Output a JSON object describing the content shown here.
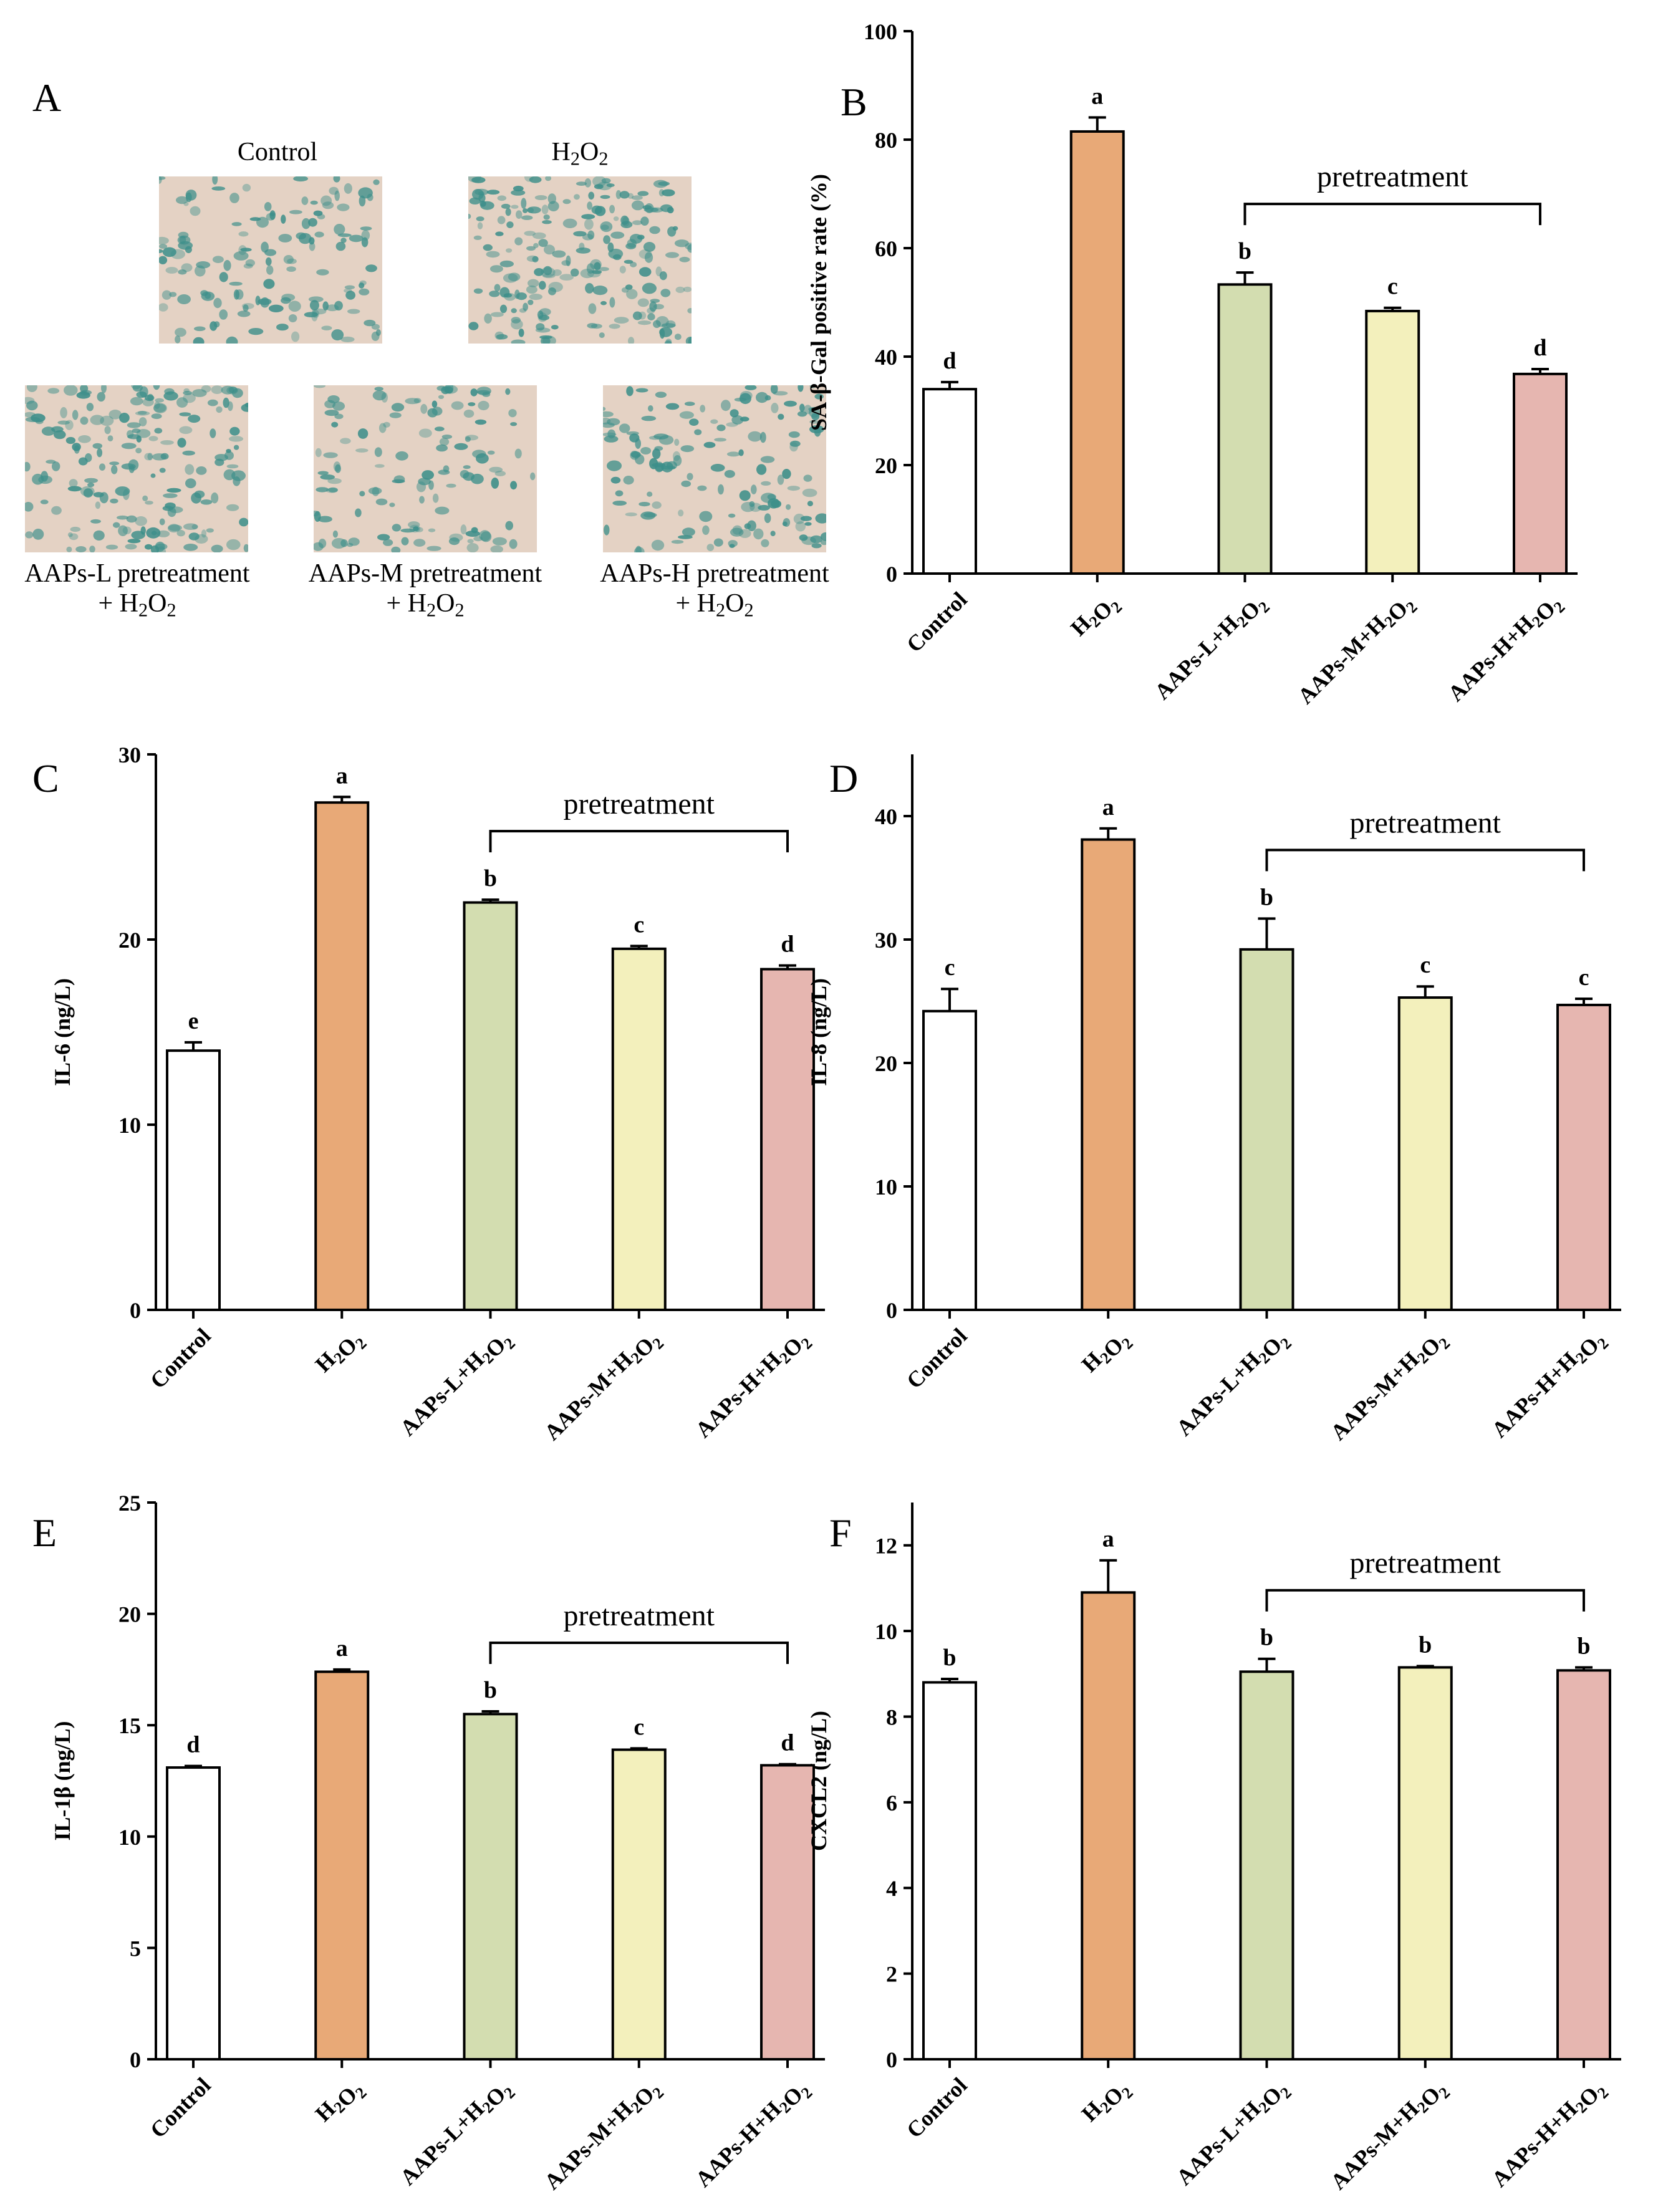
{
  "panel_a": {
    "letter": "A",
    "labels": {
      "control": "Control",
      "h2o2_base": "H",
      "h2o2_sub1": "2",
      "h2o2_mid": "O",
      "h2o2_sub2": "2",
      "l_line1": "AAPs-L pretreatment",
      "m_line1": "AAPs-M pretreatment",
      "h_line1": "AAPs-H pretreatment",
      "line2_prefix": "+ H",
      "line2_sub1": "2",
      "line2_mid": "O",
      "line2_sub2": "2"
    },
    "image_color": "#3d8f8a",
    "image_background": "#e4d2c4"
  },
  "chart_data": [
    {
      "panel": "B",
      "type": "bar",
      "categories": [
        "Control",
        "H2O2",
        "AAPs-L+H2O2",
        "AAPs-M+H2O2",
        "AAPs-H+H2O2"
      ],
      "values": [
        34,
        81.5,
        53.3,
        48.4,
        36.8
      ],
      "errors": [
        1.3,
        2.6,
        2.2,
        0.6,
        0.9
      ],
      "sig_letters": [
        "d",
        "a",
        "b",
        "c",
        "d"
      ],
      "ylabel": "SA-β-Gal positive rate (%)",
      "ylim": [
        0,
        100
      ],
      "yticks": [
        0,
        20,
        40,
        60,
        80,
        100
      ],
      "bracket_label": "pretreatment",
      "bracket_from": 2,
      "bracket_to": 4
    },
    {
      "panel": "C",
      "type": "bar",
      "categories": [
        "Control",
        "H2O2",
        "AAPs-L+H2O2",
        "AAPs-M+H2O2",
        "AAPs-H+H2O2"
      ],
      "values": [
        14.0,
        27.4,
        22.0,
        19.5,
        18.4
      ],
      "errors": [
        0.45,
        0.3,
        0.15,
        0.15,
        0.2
      ],
      "sig_letters": [
        "e",
        "a",
        "b",
        "c",
        "d"
      ],
      "ylabel": "IL-6 (ng/L)",
      "ylim": [
        0,
        30
      ],
      "yticks": [
        0,
        10,
        20,
        30
      ],
      "bracket_label": "pretreatment",
      "bracket_from": 2,
      "bracket_to": 4
    },
    {
      "panel": "D",
      "type": "bar",
      "categories": [
        "Control",
        "H2O2",
        "AAPs-L+H2O2",
        "AAPs-M+H2O2",
        "AAPs-H+H2O2"
      ],
      "values": [
        24.2,
        38.1,
        29.2,
        25.3,
        24.7
      ],
      "errors": [
        1.8,
        0.9,
        2.5,
        0.9,
        0.5
      ],
      "sig_letters": [
        "c",
        "a",
        "b",
        "c",
        "c"
      ],
      "ylabel": "IL-8 (ng/L)",
      "ylim": [
        0,
        45
      ],
      "yticks": [
        0,
        10,
        20,
        30,
        40
      ],
      "bracket_label": "pretreatment",
      "bracket_from": 2,
      "bracket_to": 4
    },
    {
      "panel": "E",
      "type": "bar",
      "categories": [
        "Control",
        "H2O2",
        "AAPs-L+H2O2",
        "AAPs-M+H2O2",
        "AAPs-H+H2O2"
      ],
      "values": [
        13.1,
        17.4,
        15.5,
        13.9,
        13.2
      ],
      "errors": [
        0.07,
        0.1,
        0.12,
        0.06,
        0.05
      ],
      "sig_letters": [
        "d",
        "a",
        "b",
        "c",
        "d"
      ],
      "ylabel": "IL-1β (ng/L)",
      "ylim": [
        0,
        25
      ],
      "yticks": [
        0,
        5,
        10,
        15,
        20,
        25
      ],
      "bracket_label": "pretreatment",
      "bracket_from": 2,
      "bracket_to": 4
    },
    {
      "panel": "F",
      "type": "bar",
      "categories": [
        "Control",
        "H2O2",
        "AAPs-L+H2O2",
        "AAPs-M+H2O2",
        "AAPs-H+H2O2"
      ],
      "values": [
        8.8,
        10.9,
        9.05,
        9.15,
        9.08
      ],
      "errors": [
        0.08,
        0.75,
        0.3,
        0.03,
        0.07
      ],
      "sig_letters": [
        "b",
        "a",
        "b",
        "b",
        "b"
      ],
      "ylabel": "CXCL2 (ng/L)",
      "ylim": [
        0,
        13
      ],
      "yticks": [
        0,
        2,
        4,
        6,
        8,
        10,
        12
      ],
      "bracket_label": "pretreatment",
      "bracket_from": 2,
      "bracket_to": 4
    }
  ],
  "colors": {
    "bars": [
      "#ffffff",
      "#e8a977",
      "#d3ddb0",
      "#f3f0bc",
      "#e6b6b0"
    ],
    "stroke": "#000000"
  }
}
